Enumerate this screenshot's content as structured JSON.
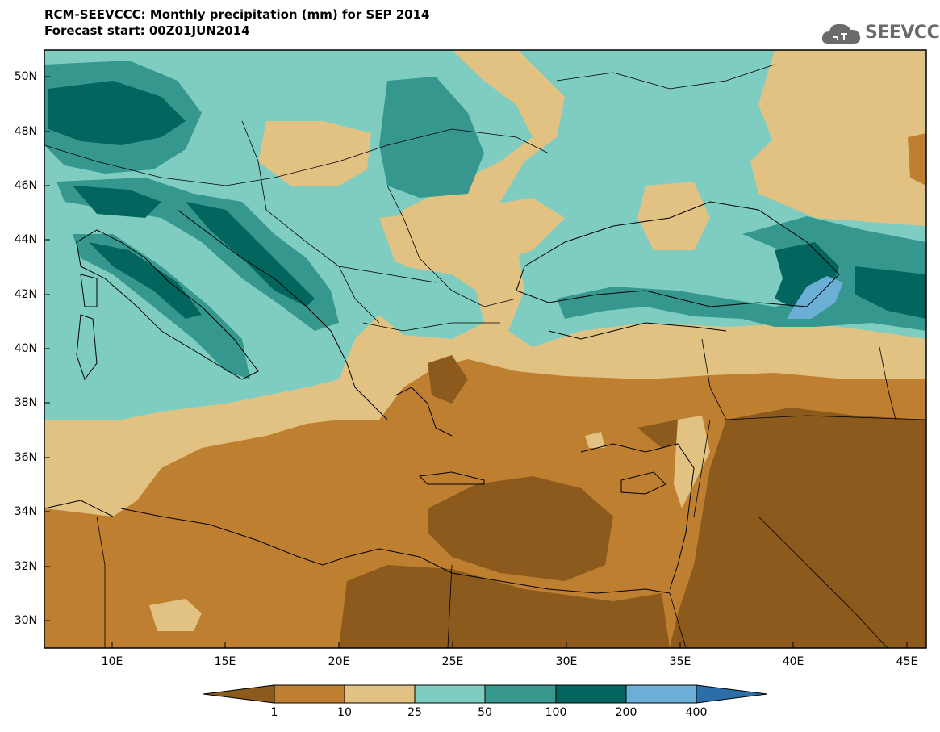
{
  "header": {
    "title": "RCM-SEEVCCC: Monthly precipitation (mm) for SEP 2014",
    "subtitle": "Forecast start: 00Z01JUN2014"
  },
  "logo": {
    "text": "SEEVCCC",
    "icon": "cloud-icon"
  },
  "axes": {
    "lat_labels": [
      "50N",
      "48N",
      "46N",
      "44N",
      "42N",
      "40N",
      "38N",
      "36N",
      "34N",
      "32N",
      "30N"
    ],
    "lon_labels": [
      "10E",
      "15E",
      "20E",
      "25E",
      "30E",
      "35E",
      "40E",
      "45E"
    ]
  },
  "colorbar": {
    "labels": [
      "1",
      "10",
      "25",
      "50",
      "100",
      "200",
      "400"
    ],
    "colors": [
      "#8b5a1c",
      "#be7f30",
      "#e2c283",
      "#7fcdc1",
      "#36978f",
      "#02665e",
      "#6baed6",
      "#2b6ea8"
    ]
  }
}
